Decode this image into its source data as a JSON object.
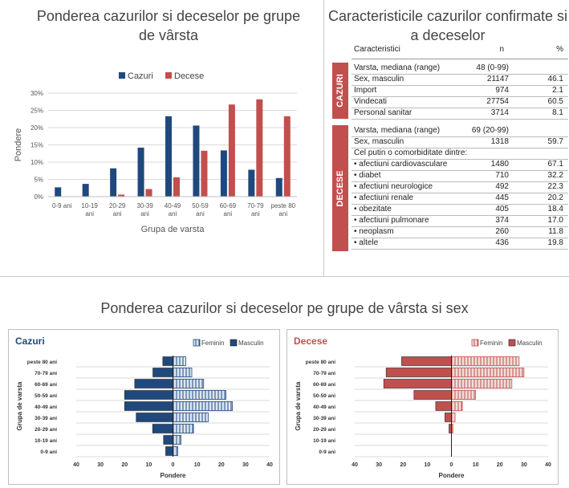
{
  "chart_data": [
    {
      "type": "bar",
      "title": "Ponderea cazurilor si deceselor pe grupe de vârsta",
      "xlabel": "Grupa de varsta",
      "ylabel": "Pondere",
      "ylim": [
        0,
        30
      ],
      "yticks": [
        "0%",
        "5%",
        "10%",
        "15%",
        "20%",
        "25%",
        "30%"
      ],
      "categories": [
        "0-9 ani",
        "10-19 ani",
        "20-29 ani",
        "30-39 ani",
        "40-49 ani",
        "50-59 ani",
        "60-69 ani",
        "70-79 ani",
        "peste 80 ani"
      ],
      "series": [
        {
          "name": "Cazuri",
          "color": "#1f497d",
          "values": [
            2.7,
            3.7,
            8.2,
            14.2,
            23.3,
            20.6,
            13.4,
            7.8,
            5.4
          ]
        },
        {
          "name": "Decese",
          "color": "#c0504d",
          "values": [
            0.0,
            0.0,
            0.6,
            2.2,
            5.6,
            13.3,
            26.7,
            28.2,
            23.3
          ]
        }
      ],
      "legend": "top-center",
      "grid": true
    },
    {
      "type": "bar",
      "panel_label": "Cazuri",
      "xlabel": "Pondere",
      "ylabel": "Grupa de varsta",
      "xlim": [
        -40,
        40
      ],
      "xticks": [
        "40",
        "30",
        "20",
        "10",
        "0",
        "10",
        "20",
        "30",
        "40"
      ],
      "categories": [
        "peste 80 ani",
        "70-79 ani",
        "60-69 ani",
        "50-59 ani",
        "40-49 ani",
        "30-39 ani",
        "20-29 ani",
        "10-19 ani",
        "0-9 ani"
      ],
      "series": [
        {
          "name": "Feminin",
          "color": "#dce6f1",
          "values": [
            5.3,
            7.8,
            12.7,
            21.9,
            24.6,
            14.6,
            8.5,
            3.3,
            2.0
          ]
        },
        {
          "name": "Masculin",
          "color": "#1f497d",
          "values": [
            4.2,
            8.3,
            15.8,
            20.0,
            20.0,
            15.2,
            8.4,
            3.9,
            3.0
          ]
        }
      ],
      "legend": "top-right"
    },
    {
      "type": "bar",
      "panel_label": "Decese",
      "xlabel": "Pondere",
      "ylabel": "Grupa de varsta",
      "xlim": [
        -40,
        40
      ],
      "xticks": [
        "40",
        "30",
        "20",
        "10",
        "0",
        "10",
        "20",
        "30",
        "40"
      ],
      "categories": [
        "peste 80 ani",
        "70-79 ani",
        "60-69 ani",
        "50-59 ani",
        "40-49 ani",
        "30-39 ani",
        "20-29 ani",
        "10-19 ani",
        "0-9 ani"
      ],
      "series": [
        {
          "name": "Feminin",
          "color": "#f2dcdb",
          "values": [
            28.0,
            30.0,
            25.0,
            10.0,
            4.5,
            1.5,
            0.6,
            0.0,
            0.0
          ]
        },
        {
          "name": "Masculin",
          "color": "#c0504d",
          "values": [
            20.6,
            27.0,
            28.0,
            15.5,
            6.5,
            2.7,
            1.0,
            0.0,
            0.0
          ]
        }
      ],
      "legend": "top-right"
    }
  ],
  "titles": {
    "left_chart": "Ponderea cazurilor si deceselor pe grupe de vârsta",
    "table": "Caracteristicile cazurilor confirmate si a deceselor",
    "bottom": "Ponderea cazurilor si deceselor pe grupe de vârsta si sex"
  },
  "table": {
    "headers": {
      "caracteristici": "Caracteristici",
      "n": "n",
      "pct": "%"
    },
    "cazuri_label": "CAZURI",
    "decese_label": "DECESE",
    "cazuri_rows": [
      {
        "label": "Varsta, mediana (range)",
        "n": "48 (0-99)",
        "pct": ""
      },
      {
        "label": "Sex, masculin",
        "n": "21147",
        "pct": "46.1"
      },
      {
        "label": "Import",
        "n": "974",
        "pct": "2.1"
      },
      {
        "label": "Vindecati",
        "n": "27754",
        "pct": "60.5"
      },
      {
        "label": "Personal sanitar",
        "n": "3714",
        "pct": "8.1"
      }
    ],
    "decese_rows": [
      {
        "label": "Varsta, mediana (range)",
        "n": "69 (20-99)",
        "pct": ""
      },
      {
        "label": "Sex, masculin",
        "n": "1318",
        "pct": "59.7"
      },
      {
        "label": "Cel putin o comorbiditate dintre:",
        "n": "",
        "pct": ""
      },
      {
        "label": "• afectiuni cardiovasculare",
        "n": "1480",
        "pct": "67.1"
      },
      {
        "label": "• diabet",
        "n": "710",
        "pct": "32.2"
      },
      {
        "label": "• afectiuni neurologice",
        "n": "492",
        "pct": "22.3"
      },
      {
        "label": "• afectiuni renale",
        "n": "445",
        "pct": "20.2"
      },
      {
        "label": "• obezitate",
        "n": "405",
        "pct": "18.4"
      },
      {
        "label": "• afectiuni pulmonare",
        "n": "374",
        "pct": "17.0"
      },
      {
        "label": "• neoplasm",
        "n": "260",
        "pct": "11.8"
      },
      {
        "label": "• altele",
        "n": "436",
        "pct": "19.8"
      }
    ]
  }
}
